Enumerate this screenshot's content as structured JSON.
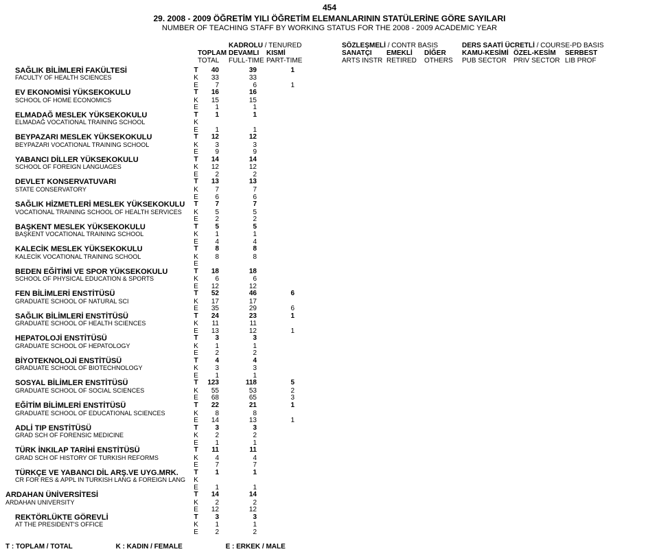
{
  "page_number": "454",
  "title_tr": "29. 2008 - 2009 ÖĞRETİM YILI ÖĞRETİM ELEMANLARININ STATÜLERİNE GÖRE SAYILARI",
  "title_en": "NUMBER OF TEACHING STAFF BY WORKING STATUS FOR THE 2008 - 2009 ACADEMIC YEAR",
  "header_groups": {
    "g1_tr": "KADROLU",
    "g1_en": "/ TENURED",
    "g2_tr": "SÖZLEŞMELİ",
    "g2_en": "/ CONTR  BASIS",
    "g3_tr": "DERS SAATİ ÜCRETLİ",
    "g3_en": "/ COURSE-PD  BASIS"
  },
  "header_cols": {
    "c1_tr": "TOPLAM",
    "c1_en": "TOTAL",
    "c2_tr": "DEVAMLI",
    "c2_en": "FULL-TIME",
    "c3_tr": "KISMİ",
    "c3_en": "PART-TIME",
    "c5_tr": "SANATÇI",
    "c5_en": "ARTS  INSTR",
    "c6_tr": "EMEKLİ",
    "c6_en": "RETIRED",
    "c7_tr": "DİĞER",
    "c7_en": "OTHERS",
    "c8_tr": "KAMU-KESİMİ",
    "c8_en": "PUB  SECTOR",
    "c9_tr": "ÖZEL-KESİM",
    "c9_en": "PRIV  SECTOR",
    "c10_tr": "SERBEST",
    "c10_en": "LIB  PROF"
  },
  "legend": {
    "t": "T : TOPLAM / TOTAL",
    "k": "K : KADIN / FEMALE",
    "e": "E : ERKEK / MALE"
  },
  "rows": [
    {
      "type": "title",
      "name_tr": "SAĞLIK BİLİMLERİ FAKÜLTESİ",
      "tke": "T",
      "v": [
        "40",
        "39",
        "1"
      ]
    },
    {
      "type": "sub",
      "name_en": "FACULTY OF HEALTH SCIENCES",
      "tke": "K",
      "v": [
        "33",
        "33",
        ""
      ]
    },
    {
      "type": "sub",
      "name_en": "",
      "tke": "E",
      "v": [
        "7",
        "6",
        "1"
      ]
    },
    {
      "type": "title",
      "name_tr": "EV EKONOMİSİ YÜKSEKOKULU",
      "tke": "T",
      "v": [
        "16",
        "16"
      ]
    },
    {
      "type": "sub",
      "name_en": "SCHOOL OF HOME ECONOMICS",
      "tke": "K",
      "v": [
        "15",
        "15"
      ]
    },
    {
      "type": "sub",
      "name_en": "",
      "tke": "E",
      "v": [
        "1",
        "1"
      ]
    },
    {
      "type": "title",
      "name_tr": "ELMADAĞ MESLEK YÜKSEKOKULU",
      "tke": "T",
      "v": [
        "1",
        "1"
      ]
    },
    {
      "type": "sub",
      "name_en": "ELMADAĞ VOCATIONAL TRAINING SCHOOL",
      "tke": "K",
      "v": [
        "",
        ""
      ]
    },
    {
      "type": "sub",
      "name_en": "",
      "tke": "E",
      "v": [
        "1",
        "1"
      ]
    },
    {
      "type": "title",
      "name_tr": "BEYPAZARI MESLEK YÜKSEKOKULU",
      "tke": "T",
      "v": [
        "12",
        "12"
      ]
    },
    {
      "type": "sub",
      "name_en": "BEYPAZARI VOCATIONAL TRAINING SCHOOL",
      "tke": "K",
      "v": [
        "3",
        "3"
      ]
    },
    {
      "type": "sub",
      "name_en": "",
      "tke": "E",
      "v": [
        "9",
        "9"
      ]
    },
    {
      "type": "title",
      "name_tr": "YABANCI DİLLER YÜKSEKOKULU",
      "tke": "T",
      "v": [
        "14",
        "14"
      ]
    },
    {
      "type": "sub",
      "name_en": "SCHOOL OF FOREIGN LANGUAGES",
      "tke": "K",
      "v": [
        "12",
        "12"
      ]
    },
    {
      "type": "sub",
      "name_en": "",
      "tke": "E",
      "v": [
        "2",
        "2"
      ]
    },
    {
      "type": "title",
      "name_tr": "DEVLET KONSERVATUVARI",
      "tke": "T",
      "v": [
        "13",
        "13"
      ]
    },
    {
      "type": "sub",
      "name_en": "STATE CONSERVATORY",
      "tke": "K",
      "v": [
        "7",
        "7"
      ]
    },
    {
      "type": "sub",
      "name_en": "",
      "tke": "E",
      "v": [
        "6",
        "6"
      ]
    },
    {
      "type": "title",
      "name_tr": "SAĞLIK HİZMETLERİ MESLEK YÜKSEKOKULU",
      "tke": "T",
      "v": [
        "7",
        "7"
      ]
    },
    {
      "type": "sub",
      "name_en": "VOCATIONAL TRAINING SCHOOL OF HEALTH SERVICES",
      "tke": "K",
      "v": [
        "5",
        "5"
      ]
    },
    {
      "type": "sub",
      "name_en": "",
      "tke": "E",
      "v": [
        "2",
        "2"
      ]
    },
    {
      "type": "title",
      "name_tr": "BAŞKENT MESLEK YÜKSEKOKULU",
      "tke": "T",
      "v": [
        "5",
        "5"
      ]
    },
    {
      "type": "sub",
      "name_en": "BAŞKENT VOCATIONAL TRAINING SCHOOL",
      "tke": "K",
      "v": [
        "1",
        "1"
      ]
    },
    {
      "type": "sub",
      "name_en": "",
      "tke": "E",
      "v": [
        "4",
        "4"
      ]
    },
    {
      "type": "title",
      "name_tr": "KALECİK MESLEK YÜKSEKOKULU",
      "tke": "T",
      "v": [
        "8",
        "8"
      ]
    },
    {
      "type": "sub",
      "name_en": "KALECİK VOCATIONAL TRAINING SCHOOL",
      "tke": "K",
      "v": [
        "8",
        "8"
      ]
    },
    {
      "type": "sub",
      "name_en": "",
      "tke": "E",
      "v": [
        "",
        ""
      ]
    },
    {
      "type": "title",
      "name_tr": "BEDEN EĞİTİMİ VE SPOR YÜKSEKOKULU",
      "tke": "T",
      "v": [
        "18",
        "18"
      ]
    },
    {
      "type": "sub",
      "name_en": "SCHOOL OF PHYSICAL EDUCATION & SPORTS",
      "tke": "K",
      "v": [
        "6",
        "6"
      ]
    },
    {
      "type": "sub",
      "name_en": "",
      "tke": "E",
      "v": [
        "12",
        "12"
      ]
    },
    {
      "type": "title",
      "name_tr": "FEN BİLİMLERİ ENSTİTÜSÜ",
      "tke": "T",
      "v": [
        "52",
        "46",
        "6"
      ]
    },
    {
      "type": "sub",
      "name_en": "GRADUATE SCHOOL OF NATURAL SCI",
      "tke": "K",
      "v": [
        "17",
        "17",
        ""
      ]
    },
    {
      "type": "sub",
      "name_en": "",
      "tke": "E",
      "v": [
        "35",
        "29",
        "6"
      ]
    },
    {
      "type": "title",
      "name_tr": "SAĞLIK BİLİMLERİ ENSTİTÜSÜ",
      "tke": "T",
      "v": [
        "24",
        "23",
        "1"
      ]
    },
    {
      "type": "sub",
      "name_en": "GRADUATE SCHOOL OF HEALTH SCIENCES",
      "tke": "K",
      "v": [
        "11",
        "11",
        ""
      ]
    },
    {
      "type": "sub",
      "name_en": "",
      "tke": "E",
      "v": [
        "13",
        "12",
        "1"
      ]
    },
    {
      "type": "title",
      "name_tr": "HEPATOLOJİ ENSTİTÜSÜ",
      "tke": "T",
      "v": [
        "3",
        "3"
      ]
    },
    {
      "type": "sub",
      "name_en": "GRADUATE SCHOOL OF HEPATOLOGY",
      "tke": "K",
      "v": [
        "1",
        "1"
      ]
    },
    {
      "type": "sub",
      "name_en": "",
      "tke": "E",
      "v": [
        "2",
        "2"
      ]
    },
    {
      "type": "title",
      "name_tr": "BİYOTEKNOLOJİ ENSTİTÜSÜ",
      "tke": "T",
      "v": [
        "4",
        "4"
      ]
    },
    {
      "type": "sub",
      "name_en": "GRADUATE SCHOOL OF BIOTECHNOLOGY",
      "tke": "K",
      "v": [
        "3",
        "3"
      ]
    },
    {
      "type": "sub",
      "name_en": "",
      "tke": "E",
      "v": [
        "1",
        "1"
      ]
    },
    {
      "type": "title",
      "name_tr": "SOSYAL BİLİMLER ENSTİTÜSÜ",
      "tke": "T",
      "v": [
        "123",
        "118",
        "5"
      ]
    },
    {
      "type": "sub",
      "name_en": "GRADUATE SCHOOL OF SOCIAL SCIENCES",
      "tke": "K",
      "v": [
        "55",
        "53",
        "2"
      ]
    },
    {
      "type": "sub",
      "name_en": "",
      "tke": "E",
      "v": [
        "68",
        "65",
        "3"
      ]
    },
    {
      "type": "title",
      "name_tr": "EĞİTİM BİLİMLERİ ENSTİTÜSÜ",
      "tke": "T",
      "v": [
        "22",
        "21",
        "1"
      ]
    },
    {
      "type": "sub",
      "name_en": "GRADUATE SCHOOL OF EDUCATIONAL SCIENCES",
      "tke": "K",
      "v": [
        "8",
        "8",
        ""
      ]
    },
    {
      "type": "sub",
      "name_en": "",
      "tke": "E",
      "v": [
        "14",
        "13",
        "1"
      ]
    },
    {
      "type": "title",
      "name_tr": "ADLİ TIP ENSTİTÜSÜ",
      "tke": "T",
      "v": [
        "3",
        "3"
      ]
    },
    {
      "type": "sub",
      "name_en": "GRAD SCH OF FORENSIC MEDICINE",
      "tke": "K",
      "v": [
        "2",
        "2"
      ]
    },
    {
      "type": "sub",
      "name_en": "",
      "tke": "E",
      "v": [
        "1",
        "1"
      ]
    },
    {
      "type": "title",
      "name_tr": "TÜRK İNKILAP TARİHİ ENSTİTÜSÜ",
      "tke": "T",
      "v": [
        "11",
        "11"
      ]
    },
    {
      "type": "sub",
      "name_en": "GRAD SCH OF HISTORY OF TURKISH REFORMS",
      "tke": "K",
      "v": [
        "4",
        "4"
      ]
    },
    {
      "type": "sub",
      "name_en": "",
      "tke": "E",
      "v": [
        "7",
        "7"
      ]
    },
    {
      "type": "title",
      "name_tr": "TÜRKÇE VE YABANCI DİL ARŞ.VE UYG.MRK.",
      "tke": "T",
      "v": [
        "1",
        "1"
      ]
    },
    {
      "type": "sub",
      "name_en": "CR FOR RES & APPL IN TURKISH LANG & FOREIGN LANG",
      "tke": "K",
      "v": [
        "",
        ""
      ]
    },
    {
      "type": "sub",
      "name_en": "",
      "tke": "E",
      "v": [
        "1",
        "1"
      ]
    },
    {
      "type": "uni",
      "name_tr": "ARDAHAN ÜNİVERSİTESİ",
      "tke": "T",
      "v": [
        "14",
        "14"
      ]
    },
    {
      "type": "uni-sub",
      "name_en": "ARDAHAN UNIVERSITY",
      "tke": "K",
      "v": [
        "2",
        "2"
      ]
    },
    {
      "type": "uni-sub",
      "name_en": "",
      "tke": "E",
      "v": [
        "12",
        "12"
      ]
    },
    {
      "type": "title",
      "name_tr": "REKTÖRLÜKTE GÖREVLİ",
      "tke": "T",
      "v": [
        "3",
        "3"
      ]
    },
    {
      "type": "sub",
      "name_en": "AT THE PRESIDENT'S OFFICE",
      "tke": "K",
      "v": [
        "1",
        "1"
      ]
    },
    {
      "type": "sub",
      "name_en": "",
      "tke": "E",
      "v": [
        "2",
        "2"
      ]
    }
  ]
}
